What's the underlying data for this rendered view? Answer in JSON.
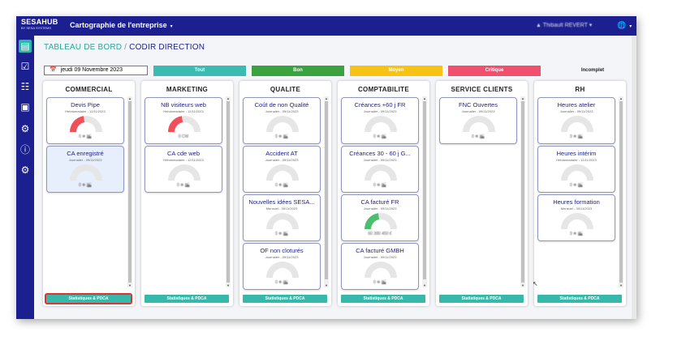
{
  "topbar": {
    "logo_main": "SESAHUB",
    "logo_sub": "BY SESA SYSTEMS",
    "app_title": "Cartographie de l'entreprise",
    "user_name": "Thibault REVERT",
    "caret": "▾",
    "globe_icon": "🌐"
  },
  "page": {
    "crumb": "TABLEAU DE BORD",
    "separator": "/",
    "title": "CODIR DIRECTION"
  },
  "date": {
    "icon": "📅",
    "value": "jeudi 09 Novembre 2023"
  },
  "filters": [
    {
      "label": "Tout",
      "color": "#3cbcb0",
      "text_color": "#ffffff"
    },
    {
      "label": "Bon",
      "color": "#3aa23f",
      "text_color": "#ffffff"
    },
    {
      "label": "Moyen",
      "color": "#f6c315",
      "text_color": "#ffffff"
    },
    {
      "label": "Critique",
      "color": "#f0506e",
      "text_color": "#ffffff"
    },
    {
      "label": "Incomplet",
      "color": "#f4f5f8",
      "text_color": "#222222"
    }
  ],
  "stat_button_label": "Statistiques & PDCA",
  "columns": [
    {
      "title": "COMMERCIAL",
      "cards": [
        {
          "title": "Devis Pipe",
          "subtitle": "Hebdomadaire - 12/11/2023",
          "value": "0 ❄ 🏙",
          "gauge": 0.45,
          "color": "#f0505a"
        },
        {
          "title": "CA enregistré",
          "subtitle": "Journalier - 09/11/2023",
          "value": "0 ❄ 🏙",
          "gauge": 0,
          "color": "#f0505a"
        }
      ]
    },
    {
      "title": "MARKETING",
      "cards": [
        {
          "title": "NB visiteurs web",
          "subtitle": "Hebdomadaire - 12/11/2023",
          "value": "0 CW",
          "gauge": 0.45,
          "color": "#f0505a"
        },
        {
          "title": "CA cde web",
          "subtitle": "Hebdomadaire - 12/11/2023",
          "value": "0 ❄ 🏙",
          "gauge": 0,
          "color": "#f0505a"
        }
      ]
    },
    {
      "title": "QUALITE",
      "cards": [
        {
          "title": "Coût de non Qualité",
          "subtitle": "Journalier - 09/11/2023",
          "value": "0 ❄ 🏙",
          "gauge": 0,
          "color": "#f0505a"
        },
        {
          "title": "Accident AT",
          "subtitle": "Journalier - 09/11/2023",
          "value": "0 ❄ 🏙",
          "gauge": 0,
          "color": "#f0505a"
        },
        {
          "title": "Nouvelles idées SESA...",
          "subtitle": "Mensuel - 30/11/2023",
          "value": "0 ❄ 🏙",
          "gauge": 0,
          "color": "#f0505a"
        },
        {
          "title": "OF non cloturés",
          "subtitle": "Journalier - 09/11/2023",
          "value": "0 ❄ 🏙",
          "gauge": 0,
          "color": "#f0505a"
        }
      ]
    },
    {
      "title": "COMPTABILITE",
      "cards": [
        {
          "title": "Créances +60 j FR",
          "subtitle": "Journalier - 09/11/2023",
          "value": "0 ❄ 🏙",
          "gauge": 0,
          "color": "#f0505a"
        },
        {
          "title": "Créances 30 - 60 j G...",
          "subtitle": "Journalier - 09/11/2023",
          "value": "0 ❄ 🏙",
          "gauge": 0,
          "color": "#f0505a"
        },
        {
          "title": "CA facturé FR",
          "subtitle": "Journalier - 09/11/2023",
          "value": "60 390 450 €",
          "gauge": 0.45,
          "color": "#4bbf6b"
        },
        {
          "title": "CA facturé GMBH",
          "subtitle": "Journalier - 09/11/2023",
          "value": "0 ❄ 🏙",
          "gauge": 0,
          "color": "#f0505a"
        }
      ]
    },
    {
      "title": "SERVICE CLIENTS",
      "cards": [
        {
          "title": "FNC Ouvertes",
          "subtitle": "Journalier - 09/11/2023",
          "value": "0 ❄ 🏙",
          "gauge": 0,
          "color": "#f0505a"
        }
      ]
    },
    {
      "title": "RH",
      "cards": [
        {
          "title": "Heures atelier",
          "subtitle": "Journalier - 09/11/2023",
          "value": "0 ❄ 🏙",
          "gauge": 0,
          "color": "#f0505a"
        },
        {
          "title": "Heures intérim",
          "subtitle": "Hebdomadaire - 12/11/2023",
          "value": "0 ❄ 🏙",
          "gauge": 0,
          "color": "#f0505a"
        },
        {
          "title": "Heures formation",
          "subtitle": "Mensuel - 30/11/2023",
          "value": "0 ❄ 🏙",
          "gauge": 0,
          "color": "#f0505a"
        }
      ]
    }
  ]
}
